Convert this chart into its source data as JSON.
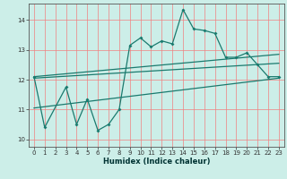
{
  "xlabel": "Humidex (Indice chaleur)",
  "bg_color": "#cceee8",
  "grid_color": "#f08080",
  "line_color": "#1a7a6e",
  "xlim": [
    -0.5,
    23.5
  ],
  "ylim": [
    9.75,
    14.55
  ],
  "xticks": [
    0,
    1,
    2,
    3,
    4,
    5,
    6,
    7,
    8,
    9,
    10,
    11,
    12,
    13,
    14,
    15,
    16,
    17,
    18,
    19,
    20,
    21,
    22,
    23
  ],
  "yticks": [
    10,
    11,
    12,
    13,
    14
  ],
  "main_x": [
    0,
    1,
    3,
    4,
    5,
    6,
    7,
    8,
    9,
    10,
    11,
    12,
    13,
    14,
    15,
    16,
    17,
    18,
    19,
    20,
    21,
    22,
    23
  ],
  "main_y": [
    12.1,
    10.4,
    11.75,
    10.5,
    11.35,
    10.3,
    10.5,
    11.0,
    13.15,
    13.4,
    13.1,
    13.3,
    13.2,
    14.35,
    13.7,
    13.65,
    13.55,
    12.75,
    12.75,
    12.9,
    12.5,
    12.1,
    12.1
  ],
  "line1_x": [
    0,
    23
  ],
  "line1_y": [
    12.05,
    12.55
  ],
  "line2_x": [
    0,
    23
  ],
  "line2_y": [
    12.1,
    12.85
  ],
  "line3_x": [
    0,
    23
  ],
  "line3_y": [
    11.05,
    12.05
  ],
  "xlabel_fontsize": 6.0,
  "tick_fontsize": 5.0
}
